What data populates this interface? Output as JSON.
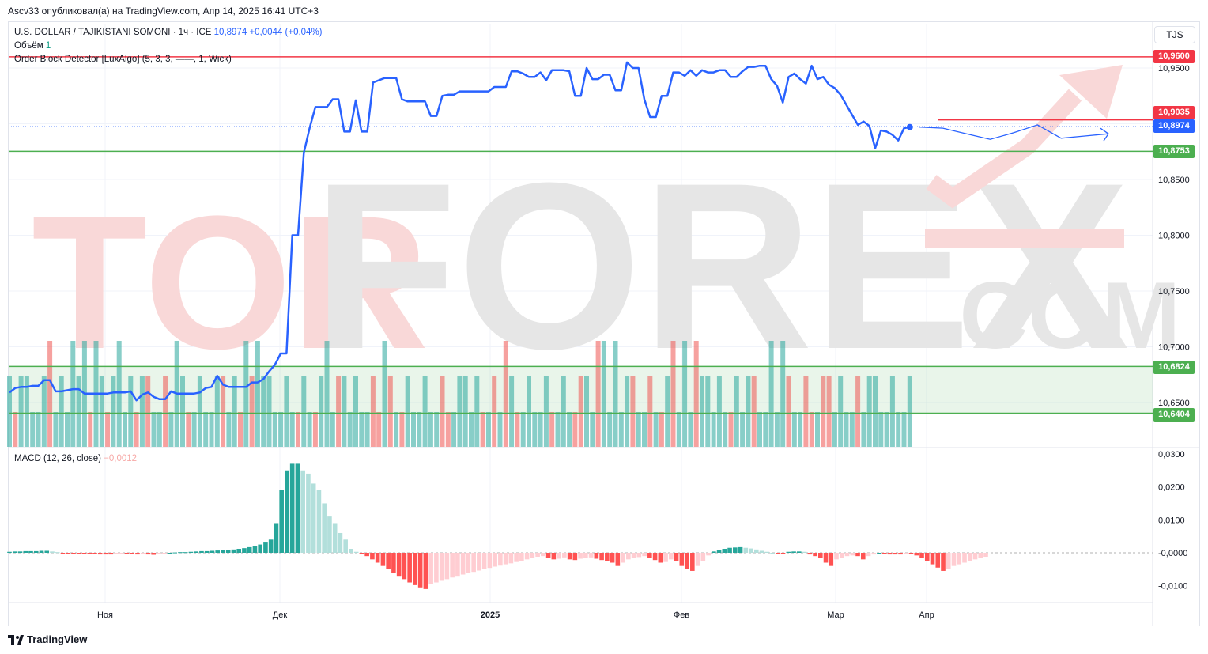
{
  "caption": "Ascv33 опубликовал(а) на TradingView.com, Апр 14, 2025 16:41 UTC+3",
  "legend": {
    "symbol": "U.S. DOLLAR / TAJIKISTANI SOMONI · 1ч · ICE",
    "last_price": "10,8974",
    "change": "+0,0044 (+0,04%)",
    "volume_label": "Объём",
    "volume_value": "1",
    "indicator": "Order Block Detector [LuxAlgo] (5, 3, 3, ——, 1, Wick)",
    "macd_label": "MACD (12, 26, close)",
    "macd_value": "−0,0012"
  },
  "currency_button": "TJS",
  "price_tags": {
    "red_top": "10,9600",
    "red_mid": "10,9035",
    "current": "10,8974",
    "green_top": "10,8753",
    "green_block_top": "10,6824",
    "green_block_bottom": "10,6404"
  },
  "watermark": {
    "part1": "TOR",
    "part2": "FOREX",
    "part3": ".COM"
  },
  "brand": "TradingView",
  "colors": {
    "line": "#2962ff",
    "red_level": "#f23645",
    "green_level": "#4caf50",
    "vol_up": "#26a69a",
    "vol_down": "#ef5350",
    "macd_up_strong": "#26a69a",
    "macd_up_weak": "#b2dfdb",
    "macd_down_strong": "#ff5252",
    "macd_down_weak": "#ffcdd2",
    "block_fill": "#4caf50"
  },
  "chart_data": [
    {
      "type": "line",
      "name": "USD/TJS 1h",
      "y_ticks": [
        "10,9500",
        "10,9000",
        "10,8500",
        "10,8000",
        "10,7500",
        "10,7000",
        "10,6500"
      ],
      "x_ticks": [
        "Ноя",
        "Дек",
        "2025",
        "Фев",
        "Мар",
        "Апр"
      ],
      "ylim": [
        10.618,
        10.972
      ],
      "levels": [
        {
          "value": 10.96,
          "color": "red"
        },
        {
          "value": 10.9035,
          "color": "red"
        },
        {
          "value": 10.8753,
          "color": "green"
        },
        {
          "value": 10.6824,
          "color": "green"
        },
        {
          "value": 10.6404,
          "color": "green"
        }
      ],
      "values": [
        10.659,
        10.663,
        10.664,
        10.664,
        10.665,
        10.665,
        10.67,
        10.67,
        10.66,
        10.66,
        10.661,
        10.662,
        10.662,
        10.658,
        10.658,
        10.658,
        10.658,
        10.658,
        10.659,
        10.659,
        10.659,
        10.66,
        10.652,
        10.657,
        10.659,
        10.655,
        10.653,
        10.653,
        10.66,
        10.658,
        10.658,
        10.658,
        10.658,
        10.659,
        10.663,
        10.664,
        10.674,
        10.666,
        10.664,
        10.664,
        10.664,
        10.664,
        10.668,
        10.668,
        10.671,
        10.678,
        10.684,
        10.694,
        10.694,
        10.8,
        10.8,
        10.874,
        10.896,
        10.915,
        10.915,
        10.915,
        10.922,
        10.922,
        10.893,
        10.893,
        10.921,
        10.893,
        10.893,
        10.937,
        10.939,
        10.941,
        10.941,
        10.941,
        10.922,
        10.92,
        10.92,
        10.92,
        10.92,
        10.907,
        10.907,
        10.925,
        10.926,
        10.926,
        10.929,
        10.929,
        10.929,
        10.929,
        10.929,
        10.929,
        10.933,
        10.933,
        10.933,
        10.947,
        10.947,
        10.945,
        10.942,
        10.942,
        10.946,
        10.939,
        10.948,
        10.948,
        10.948,
        10.947,
        10.925,
        10.925,
        10.95,
        10.94,
        10.94,
        10.944,
        10.944,
        10.93,
        10.93,
        10.955,
        10.95,
        10.95,
        10.922,
        10.906,
        10.906,
        10.925,
        10.925,
        10.946,
        10.946,
        10.943,
        10.948,
        10.943,
        10.948,
        10.946,
        10.946,
        10.948,
        10.948,
        10.942,
        10.942,
        10.947,
        10.951,
        10.951,
        10.952,
        10.952,
        10.94,
        10.934,
        10.919,
        10.942,
        10.945,
        10.94,
        10.936,
        10.952,
        10.94,
        10.942,
        10.935,
        10.932,
        10.926,
        10.917,
        10.908,
        10.899,
        10.902,
        10.898,
        10.878,
        10.894,
        10.893,
        10.89,
        10.885,
        10.896,
        10.897
      ],
      "forecast": [
        10.897,
        10.896,
        10.891,
        10.886,
        10.892,
        10.899,
        10.887,
        10.889,
        10.891
      ]
    },
    {
      "type": "bar",
      "name": "Объём",
      "up_down": "10111110111111011011110101101110111110110101111111011011101111100101011111100111110101010111110111001101111101101010111011111011101111101100100111101111111111011111111111",
      "spikes": [
        false,
        false,
        false,
        false,
        false,
        false,
        false,
        true,
        false,
        false,
        false,
        true,
        false,
        true,
        false,
        true,
        false,
        false,
        false,
        true,
        false,
        false,
        false,
        false,
        false,
        false,
        false,
        false,
        false,
        true,
        false,
        false,
        false,
        false,
        false,
        false,
        false,
        false,
        false,
        false,
        false,
        true,
        false,
        true,
        false,
        false,
        false,
        false,
        false,
        false,
        false,
        false,
        false,
        false,
        false,
        true,
        false,
        false,
        false,
        false,
        false,
        false,
        false,
        false,
        false,
        true,
        false,
        false,
        false,
        false,
        false,
        false,
        false,
        false,
        false,
        false,
        false,
        false,
        false,
        false,
        false,
        false,
        false,
        false,
        false,
        false,
        true,
        false,
        false,
        false,
        false,
        false,
        false,
        false,
        false,
        false,
        false,
        false,
        false,
        false,
        false,
        false,
        true,
        true,
        false,
        true,
        false,
        false,
        false,
        false,
        false,
        false,
        false,
        false,
        false,
        true,
        false,
        true,
        false,
        true,
        false,
        false,
        false,
        false,
        false,
        false,
        false,
        false,
        false,
        false,
        false,
        false,
        true,
        false,
        true,
        false,
        false,
        false,
        false,
        false,
        false,
        false,
        false,
        false,
        false,
        false,
        false,
        false,
        false,
        false,
        false,
        false,
        false,
        false,
        false,
        false,
        false,
        false,
        false,
        false,
        false,
        false,
        false,
        false,
        false,
        false,
        false,
        false,
        false,
        false,
        false
      ]
    },
    {
      "type": "bar",
      "name": "MACD",
      "y_ticks": [
        "0,0300",
        "0,0200",
        "0,0100",
        "-0,0000",
        "-0,0100"
      ],
      "ylim": [
        -0.0138,
        0.0302
      ],
      "values": [
        0.0003,
        0.0004,
        0.0004,
        0.0005,
        0.0005,
        0.0005,
        0.0006,
        0.0006,
        0.0004,
        0.0002,
        -0.0001,
        -0.0002,
        -0.0002,
        -0.0003,
        -0.0003,
        -0.0004,
        -0.0004,
        -0.0005,
        -0.0005,
        -0.0005,
        -0.0004,
        -0.0003,
        -0.0003,
        -0.0004,
        -0.0005,
        -0.0004,
        -0.0005,
        -0.0006,
        -0.0004,
        -0.0002,
        0.0,
        0.0001,
        0.0002,
        0.0002,
        0.0003,
        0.0004,
        0.0005,
        0.0005,
        0.0006,
        0.0007,
        0.0008,
        0.0009,
        0.001,
        0.0012,
        0.0014,
        0.0017,
        0.002,
        0.0025,
        0.0031,
        0.004,
        0.009,
        0.019,
        0.025,
        0.027,
        0.027,
        0.025,
        0.024,
        0.021,
        0.019,
        0.015,
        0.011,
        0.009,
        0.006,
        0.004,
        0.0012,
        0.0003,
        -0.0003,
        -0.001,
        -0.002,
        -0.003,
        -0.004,
        -0.005,
        -0.006,
        -0.007,
        -0.008,
        -0.009,
        -0.0098,
        -0.0105,
        -0.011,
        -0.0095,
        -0.009,
        -0.0085,
        -0.008,
        -0.0075,
        -0.007,
        -0.0066,
        -0.0062,
        -0.0058,
        -0.0054,
        -0.005,
        -0.0046,
        -0.0042,
        -0.0039,
        -0.0035,
        -0.0032,
        -0.0028,
        -0.0024,
        -0.002,
        -0.0016,
        -0.0012,
        -0.001,
        -0.0015,
        -0.002,
        -0.0018,
        -0.0014,
        -0.002,
        -0.0022,
        -0.0018,
        -0.0016,
        -0.0014,
        -0.0018,
        -0.0022,
        -0.0025,
        -0.003,
        -0.004,
        -0.003,
        -0.002,
        -0.0016,
        -0.0013,
        -0.001,
        -0.0015,
        -0.0022,
        -0.003,
        -0.0028,
        -0.002,
        -0.0026,
        -0.004,
        -0.005,
        -0.0055,
        -0.004,
        -0.0025,
        -0.0008,
        0.0004,
        0.0009,
        0.0012,
        0.0015,
        0.0016,
        0.0017,
        0.0015,
        0.0013,
        0.001,
        0.0006,
        0.0003,
        0.0,
        -0.0001,
        -0.0002,
        0.0003,
        0.0004,
        0.0004,
        0.0003,
        -0.0005,
        -0.001,
        -0.0015,
        -0.003,
        -0.004,
        -0.002,
        -0.0015,
        -0.001,
        -0.0008,
        -0.001,
        -0.002,
        -0.001,
        -0.0005,
        0.0,
        -0.0003,
        -0.0005,
        -0.0005,
        -0.0005,
        -0.0003,
        -0.0004,
        -0.0008,
        -0.0015,
        -0.0025,
        -0.0035,
        -0.0045,
        -0.0055,
        -0.0048,
        -0.004,
        -0.0035,
        -0.003,
        -0.0025,
        -0.002,
        -0.0015,
        -0.0012
      ]
    }
  ]
}
